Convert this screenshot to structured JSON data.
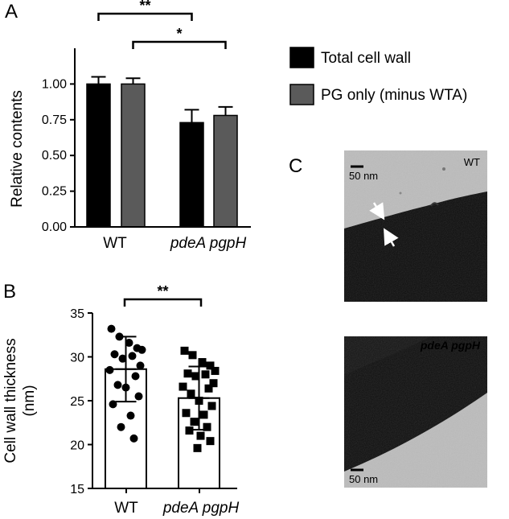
{
  "panels": {
    "a": "A",
    "b": "B",
    "c": "C"
  },
  "chart_data": [
    {
      "type": "bar",
      "panel": "A",
      "title": "",
      "xlabel": "",
      "ylabel": "Relative contents",
      "ylim": [
        0,
        1.25
      ],
      "yticks": [
        "0.00",
        "0.25",
        "0.50",
        "0.75",
        "1.00"
      ],
      "categories": [
        "WT",
        "pdeA pgpH"
      ],
      "category_italic": [
        false,
        true
      ],
      "series": [
        {
          "name": "Total cell wall",
          "color": "#000000",
          "values": [
            1.0,
            0.73
          ],
          "errors": [
            0.05,
            0.09
          ]
        },
        {
          "name": "PG only (minus WTA)",
          "color": "#5a5a5a",
          "values": [
            1.0,
            0.78
          ],
          "errors": [
            0.04,
            0.06
          ]
        }
      ],
      "significance": [
        {
          "label": "**",
          "from": "WT / Total cell wall",
          "to": "pdeA pgpH / Total cell wall"
        },
        {
          "label": "*",
          "from": "WT / PG only (minus WTA)",
          "to": "pdeA pgpH / PG only (minus WTA)"
        }
      ],
      "legend_position": "right",
      "grid": false
    },
    {
      "type": "bar",
      "panel": "B",
      "title": "",
      "xlabel": "",
      "ylabel": "Cell wall thickness (nm)",
      "ylabel_lines": [
        "Cell wall thickness",
        "(nm)"
      ],
      "ylim": [
        15,
        35
      ],
      "yticks": [
        "15",
        "20",
        "25",
        "30",
        "35"
      ],
      "categories": [
        "WT",
        "pdeA pgpH"
      ],
      "category_italic": [
        false,
        true
      ],
      "series": [
        {
          "values": [
            28.6,
            25.3
          ],
          "sd": [
            3.7,
            3.6
          ],
          "points": [
            [
              33.2,
              32.3,
              31.6,
              31.0,
              30.8,
              30.3,
              30.1,
              29.8,
              29.0,
              28.5,
              27.8,
              26.8,
              26.5,
              25.5,
              24.6,
              23.3,
              22.0,
              20.7
            ],
            [
              30.7,
              30.2,
              29.4,
              29.0,
              28.4,
              28.1,
              28.0,
              27.8,
              27.0,
              26.6,
              26.4,
              25.8,
              25.0,
              24.4,
              23.6,
              23.4,
              22.6,
              22.0,
              21.6,
              21.0,
              20.4,
              19.6
            ]
          ],
          "markers": [
            "circle",
            "square"
          ]
        }
      ],
      "significance": [
        {
          "label": "**",
          "from": "WT",
          "to": "pdeA pgpH"
        }
      ],
      "grid": false
    }
  ],
  "micrographs": [
    {
      "scale_label": "50 nm",
      "sample_label": "WT",
      "sample_italic": false
    },
    {
      "scale_label": "50 nm",
      "sample_label": "pdeA pgpH",
      "sample_italic": true
    }
  ]
}
